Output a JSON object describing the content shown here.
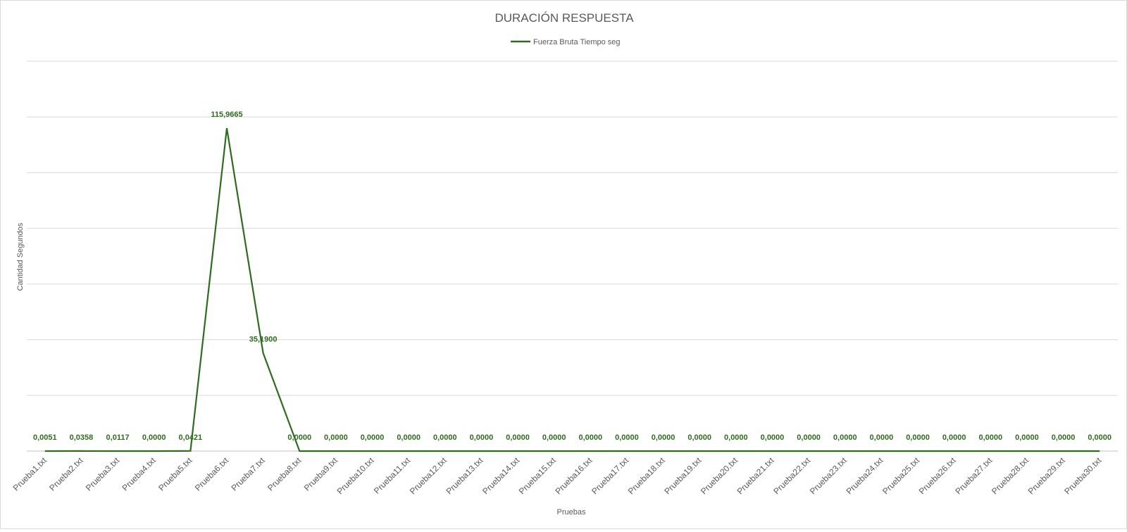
{
  "chart_data": {
    "type": "line",
    "title": "DURACIÓN RESPUESTA",
    "xlabel": "Pruebas",
    "ylabel": "Cantidad Segundos",
    "legend_position": "top",
    "grid": true,
    "ylim": [
      0,
      140
    ],
    "yticks_shown": false,
    "categories": [
      "Prueba1.txt",
      "Prueba2.txt",
      "Prueba3.txt",
      "Prueba4.txt",
      "Prueba5.txt",
      "Prueba6.txt",
      "Prueba7.txt",
      "Prueba8.txt",
      "Prueba9.txt",
      "Prueba10.txt",
      "Prueba11.txt",
      "Prueba12.txt",
      "Prueba13.txt",
      "Prueba14.txt",
      "Prueba15.txt",
      "Prueba16.txt",
      "Prueba17.txt",
      "Prueba18.txt",
      "Prueba19.txt",
      "Prueba20.txt",
      "Prueba21.txt",
      "Prueba22.txt",
      "Prueba23.txt",
      "Prueba24.txt",
      "Prueba25.txt",
      "Prueba26.txt",
      "Prueba27.txt",
      "Prueba28.txt",
      "Prueba29.txt",
      "Prueba30.txt"
    ],
    "series": [
      {
        "name": "Fuerza Bruta Tiempo seg",
        "color": "#2f6b1e",
        "values": [
          0.0051,
          0.0358,
          0.0117,
          0.0,
          0.0421,
          115.9665,
          35.19,
          0.0,
          0.0,
          0.0,
          0.0,
          0.0,
          0.0,
          0.0,
          0.0,
          0.0,
          0.0,
          0.0,
          0.0,
          0.0,
          0.0,
          0.0,
          0.0,
          0.0,
          0.0,
          0.0,
          0.0,
          0.0,
          0.0,
          0.0
        ],
        "labels": [
          "0,0051",
          "0,0358",
          "0,0117",
          "0,0000",
          "0,0421",
          "115,9665",
          "35,1900",
          "0,0000",
          "0,0000",
          "0,0000",
          "0,0000",
          "0,0000",
          "0,0000",
          "0,0000",
          "0,0000",
          "0,0000",
          "0,0000",
          "0,0000",
          "0,0000",
          "0,0000",
          "0,0000",
          "0,0000",
          "0,0000",
          "0,0000",
          "0,0000",
          "0,0000",
          "0,0000",
          "0,0000",
          "0,0000",
          "0,0000"
        ]
      }
    ]
  }
}
